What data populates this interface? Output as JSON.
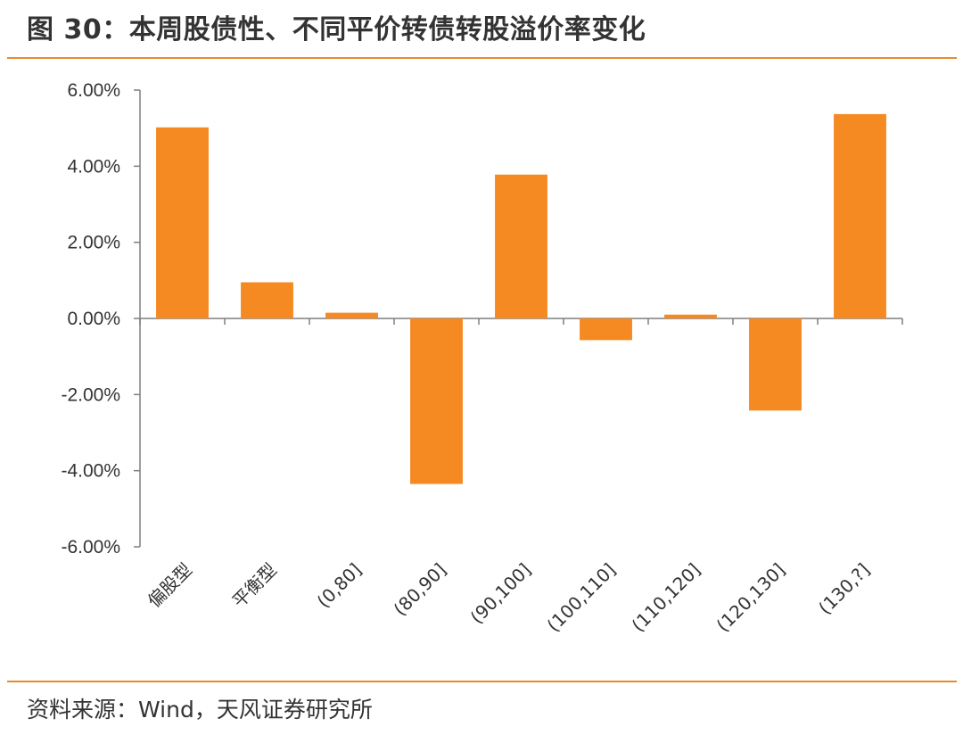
{
  "header": {
    "title": "图 30：本周股债性、不同平价转债转股溢价率变化"
  },
  "footer": {
    "source": "资料来源：Wind，天风证券研究所"
  },
  "colors": {
    "bar": "#f58a23",
    "rule": "#e98b2a",
    "axis": "#7f7f7f"
  },
  "chart_data": {
    "type": "bar",
    "title": "本周股债性、不同平价转债转股溢价率变化",
    "categories": [
      "偏股型",
      "平衡型",
      "(0,80]",
      "(80,90]",
      "(90,100]",
      "(100,110]",
      "(110,120]",
      "(120,130]",
      "(130,?]"
    ],
    "values": [
      5.02,
      0.95,
      0.15,
      -4.35,
      3.78,
      -0.57,
      0.1,
      -2.42,
      5.37
    ],
    "unit": "%",
    "ylim": [
      -6,
      6
    ],
    "yticks": [
      6,
      4,
      2,
      0,
      -2,
      -4,
      -6
    ],
    "ytick_labels": [
      "6.00%",
      "4.00%",
      "2.00%",
      "0.00%",
      "-2.00%",
      "-4.00%",
      "-6.00%"
    ],
    "xlabel": "",
    "ylabel": "",
    "grid": false,
    "legend": "none"
  }
}
